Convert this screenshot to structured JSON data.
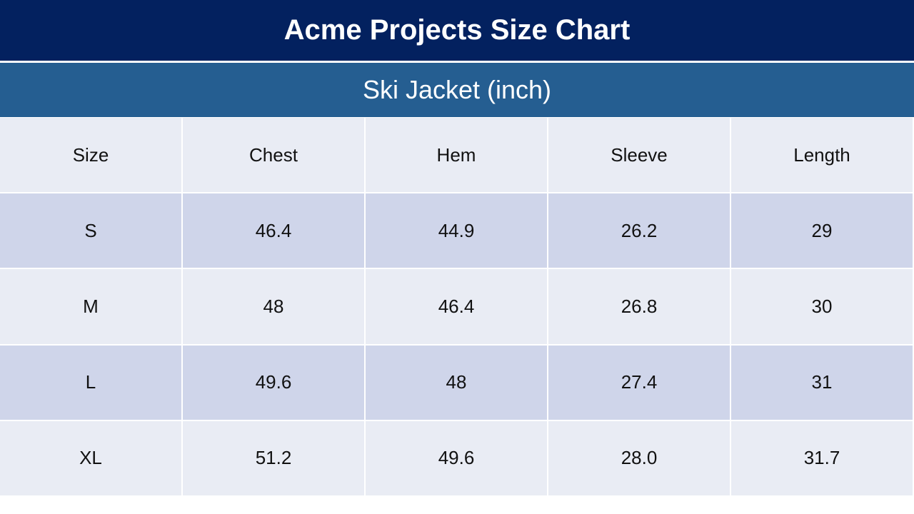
{
  "header": {
    "title": "Acme Projects Size Chart",
    "subtitle": "Ski Jacket (inch)"
  },
  "table": {
    "columns": [
      "Size",
      "Chest",
      "Hem",
      "Sleeve",
      "Length"
    ],
    "rows": [
      [
        "S",
        "46.4",
        "44.9",
        "26.2",
        "29"
      ],
      [
        "M",
        "48",
        "46.4",
        "26.8",
        "30"
      ],
      [
        "L",
        "49.6",
        "48",
        "27.4",
        "31"
      ],
      [
        "XL",
        "51.2",
        "49.6",
        "28.0",
        "31.7"
      ]
    ]
  }
}
